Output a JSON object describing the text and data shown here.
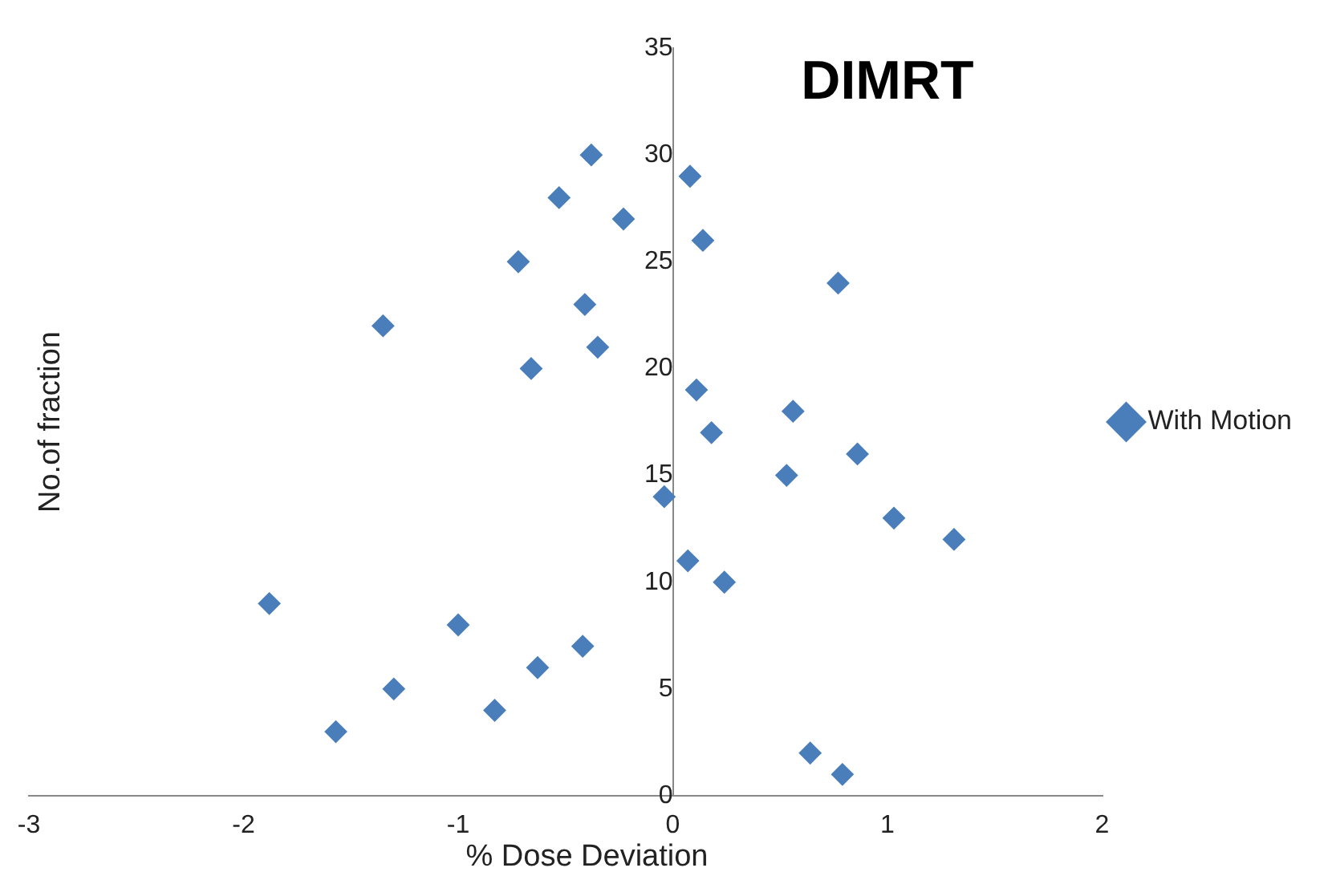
{
  "chart_data": {
    "type": "scatter",
    "title": "DIMRT",
    "xlabel": "% Dose Deviation",
    "ylabel": "No.of fraction",
    "series": [
      {
        "name": "With Motion",
        "color": "#4a7ebb",
        "x": [
          -0.38,
          0.08,
          -0.53,
          -0.23,
          0.14,
          -0.72,
          0.77,
          -0.41,
          -1.35,
          -0.35,
          -0.66,
          0.11,
          0.56,
          0.18,
          0.86,
          0.53,
          -0.04,
          1.03,
          1.31,
          0.07,
          0.24,
          -1.88,
          -1.0,
          -0.42,
          -0.63,
          -1.3,
          -0.83,
          -1.57,
          0.64,
          0.79
        ],
        "values": [
          30,
          29,
          28,
          27,
          26,
          25,
          24,
          23,
          22,
          21,
          20,
          19,
          18,
          17,
          16,
          15,
          14,
          13,
          12,
          11,
          10,
          9,
          8,
          7,
          6,
          5,
          4,
          3,
          2,
          1
        ]
      }
    ],
    "xlim": [
      -3,
      2
    ],
    "xticks": [
      -3,
      -2,
      -1,
      0,
      1,
      2
    ],
    "ylim": [
      0,
      35
    ],
    "yticks": [
      0,
      5,
      10,
      15,
      20,
      25,
      30,
      35
    ],
    "grid": false,
    "legend": "right",
    "marker": "diamond"
  }
}
